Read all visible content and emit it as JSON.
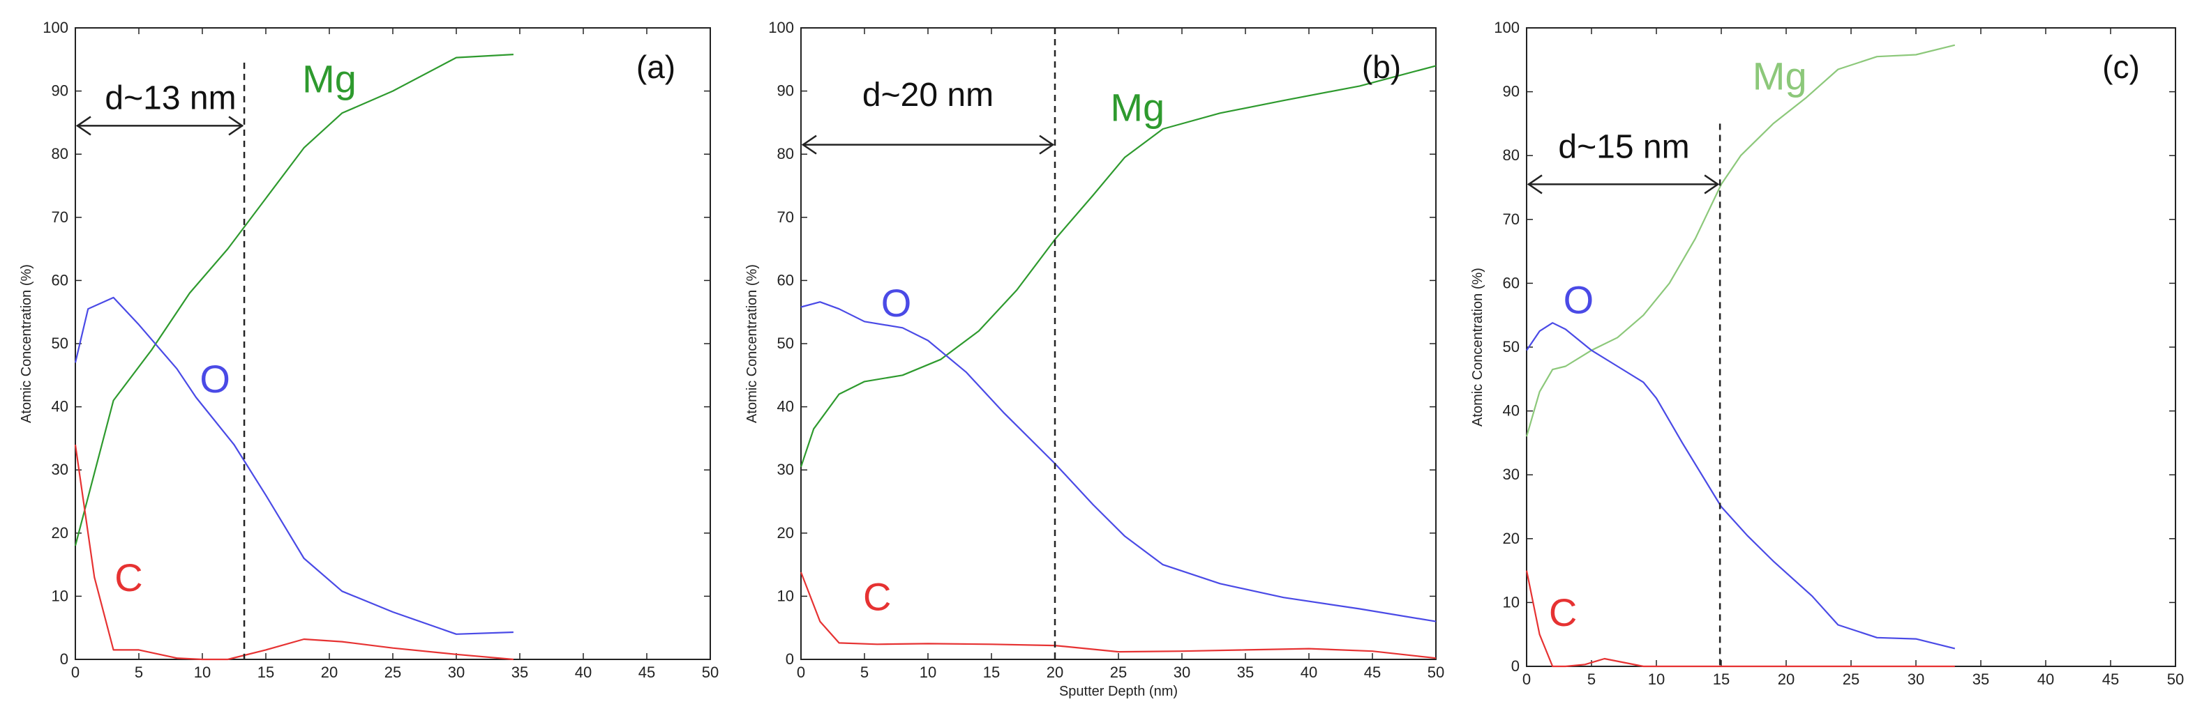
{
  "chart_data": [
    {
      "type": "line",
      "panel": "(a)",
      "xlabel": "",
      "ylabel": "Atomic Concentration (%)",
      "xlim": [
        0,
        50
      ],
      "ylim": [
        0,
        100
      ],
      "x_ticks": [
        "0",
        "5",
        "10",
        "15",
        "20",
        "25",
        "30",
        "35",
        "40",
        "45",
        "50"
      ],
      "y_ticks": [
        "0",
        "10",
        "20",
        "30",
        "40",
        "50",
        "60",
        "70",
        "80",
        "90",
        "100"
      ],
      "series": [
        {
          "name": "Mg",
          "color": "#2e9a2e",
          "label_at": [
            20,
            92
          ],
          "points": [
            [
              0,
              18
            ],
            [
              3,
              41
            ],
            [
              6,
              49
            ],
            [
              9,
              58
            ],
            [
              12,
              65
            ],
            [
              15,
              73
            ],
            [
              18,
              81
            ],
            [
              21,
              86.5
            ],
            [
              25,
              90
            ],
            [
              30,
              95.3
            ],
            [
              34.5,
              95.8
            ]
          ]
        },
        {
          "name": "O",
          "color": "#4a4ae6",
          "label_at": [
            11,
            44.5
          ],
          "points": [
            [
              0,
              47
            ],
            [
              1,
              55.5
            ],
            [
              3,
              57.3
            ],
            [
              5,
              53
            ],
            [
              8,
              46
            ],
            [
              9.5,
              41.5
            ],
            [
              12.5,
              34
            ],
            [
              15,
              26
            ],
            [
              18,
              16
            ],
            [
              21,
              10.8
            ],
            [
              25,
              7.5
            ],
            [
              30,
              4
            ],
            [
              34.5,
              4.3
            ]
          ]
        },
        {
          "name": "C",
          "color": "#e63232",
          "label_at": [
            4.2,
            13
          ],
          "points": [
            [
              0,
              34
            ],
            [
              1.5,
              13
            ],
            [
              3,
              1.5
            ],
            [
              5,
              1.5
            ],
            [
              8,
              0.2
            ],
            [
              10,
              0
            ],
            [
              12,
              0
            ],
            [
              15,
              1.5
            ],
            [
              18,
              3.2
            ],
            [
              21,
              2.8
            ],
            [
              25,
              1.8
            ],
            [
              30,
              0.8
            ],
            [
              34.5,
              0
            ]
          ]
        }
      ],
      "annotations": [
        {
          "text": "d~13 nm",
          "arrow_from": 0,
          "arrow_to": 13.3,
          "arrow_y": 84.5,
          "text_at": [
            7.5,
            89
          ],
          "dashed_x": 13.3,
          "dashed_top": 94.5
        }
      ]
    },
    {
      "type": "line",
      "panel": "(b)",
      "xlabel": "Sputter Depth (nm)",
      "ylabel": "Atomic Concentration (%)",
      "xlim": [
        0,
        50
      ],
      "ylim": [
        0,
        100
      ],
      "x_ticks": [
        "0",
        "5",
        "10",
        "15",
        "20",
        "25",
        "30",
        "35",
        "40",
        "45",
        "50"
      ],
      "y_ticks": [
        "0",
        "10",
        "20",
        "30",
        "40",
        "50",
        "60",
        "70",
        "80",
        "90",
        "100"
      ],
      "series": [
        {
          "name": "Mg",
          "color": "#2e9a2e",
          "label_at": [
            26.5,
            87.5
          ],
          "points": [
            [
              0,
              30.5
            ],
            [
              1,
              36.5
            ],
            [
              3,
              42
            ],
            [
              5,
              44
            ],
            [
              8,
              45
            ],
            [
              11,
              47.5
            ],
            [
              14,
              52
            ],
            [
              17,
              58.5
            ],
            [
              20,
              66.5
            ],
            [
              23,
              73.5
            ],
            [
              25.5,
              79.5
            ],
            [
              28.5,
              84
            ],
            [
              33,
              86.5
            ],
            [
              38,
              88.5
            ],
            [
              44,
              90.8
            ],
            [
              50,
              94
            ]
          ]
        },
        {
          "name": "O",
          "color": "#4a4ae6",
          "label_at": [
            7.5,
            56.5
          ],
          "points": [
            [
              0,
              55.8
            ],
            [
              1.5,
              56.6
            ],
            [
              3,
              55.5
            ],
            [
              5,
              53.5
            ],
            [
              8,
              52.5
            ],
            [
              10,
              50.5
            ],
            [
              13,
              45.5
            ],
            [
              16,
              39
            ],
            [
              20,
              31
            ],
            [
              23,
              24.5
            ],
            [
              25.5,
              19.5
            ],
            [
              28.5,
              15
            ],
            [
              33,
              12
            ],
            [
              38,
              9.8
            ],
            [
              44,
              8
            ],
            [
              50,
              6
            ]
          ]
        },
        {
          "name": "C",
          "color": "#e63232",
          "label_at": [
            6,
            10
          ],
          "points": [
            [
              0,
              13.8
            ],
            [
              1.5,
              6
            ],
            [
              3,
              2.6
            ],
            [
              6,
              2.4
            ],
            [
              10,
              2.5
            ],
            [
              15,
              2.4
            ],
            [
              20,
              2.2
            ],
            [
              25,
              1.2
            ],
            [
              30,
              1.3
            ],
            [
              35,
              1.5
            ],
            [
              40,
              1.7
            ],
            [
              45,
              1.3
            ],
            [
              50,
              0.2
            ]
          ]
        }
      ],
      "annotations": [
        {
          "text": "d~20 nm",
          "arrow_from": 0,
          "arrow_to": 20,
          "arrow_y": 81.5,
          "text_at": [
            10,
            89.5
          ],
          "dashed_x": 20,
          "dashed_top": 100
        }
      ]
    },
    {
      "type": "line",
      "panel": "(c)",
      "xlabel": "",
      "ylabel": "Atomic Concentration (%)",
      "xlim": [
        0,
        50
      ],
      "ylim": [
        0,
        100
      ],
      "x_ticks": [
        "0",
        "5",
        "10",
        "15",
        "20",
        "25",
        "30",
        "35",
        "40",
        "45",
        "50"
      ],
      "y_ticks": [
        "0",
        "10",
        "20",
        "30",
        "40",
        "50",
        "60",
        "70",
        "80",
        "90",
        "100"
      ],
      "series": [
        {
          "name": "Mg",
          "color": "#8cc87a",
          "label_at": [
            19.5,
            92.5
          ],
          "points": [
            [
              0,
              36
            ],
            [
              1,
              43
            ],
            [
              2,
              46.5
            ],
            [
              3,
              47
            ],
            [
              5,
              49.5
            ],
            [
              7,
              51.5
            ],
            [
              9,
              55
            ],
            [
              11,
              60
            ],
            [
              13,
              67
            ],
            [
              15,
              75.5
            ],
            [
              16.5,
              80
            ],
            [
              19,
              85
            ],
            [
              21.5,
              89
            ],
            [
              24,
              93.5
            ],
            [
              27,
              95.5
            ],
            [
              30,
              95.8
            ],
            [
              33,
              97.3
            ]
          ]
        },
        {
          "name": "O",
          "color": "#4a4ae6",
          "label_at": [
            4,
            57.5
          ],
          "points": [
            [
              0,
              49.5
            ],
            [
              1,
              52.5
            ],
            [
              2,
              53.8
            ],
            [
              3,
              52.8
            ],
            [
              5,
              49.5
            ],
            [
              7,
              47
            ],
            [
              9,
              44.5
            ],
            [
              10,
              42
            ],
            [
              12,
              35
            ],
            [
              15,
              25
            ],
            [
              17,
              20.5
            ],
            [
              19,
              16.5
            ],
            [
              22,
              11
            ],
            [
              24,
              6.5
            ],
            [
              27,
              4.5
            ],
            [
              30,
              4.3
            ],
            [
              33,
              2.8
            ]
          ]
        },
        {
          "name": "C",
          "color": "#e63232",
          "label_at": [
            2.8,
            8.5
          ],
          "points": [
            [
              0,
              15
            ],
            [
              1,
              5
            ],
            [
              2,
              0
            ],
            [
              3,
              0
            ],
            [
              4.5,
              0.3
            ],
            [
              6,
              1.2
            ],
            [
              7.5,
              0.6
            ],
            [
              9,
              0
            ],
            [
              12,
              0
            ],
            [
              18,
              0
            ],
            [
              24,
              0
            ],
            [
              30,
              0
            ],
            [
              33,
              0
            ]
          ]
        }
      ],
      "annotations": [
        {
          "text": "d~15 nm",
          "arrow_from": 0,
          "arrow_to": 14.9,
          "arrow_y": 75.5,
          "text_at": [
            7.5,
            81.5
          ],
          "dashed_x": 14.9,
          "dashed_top": 85
        }
      ]
    }
  ]
}
